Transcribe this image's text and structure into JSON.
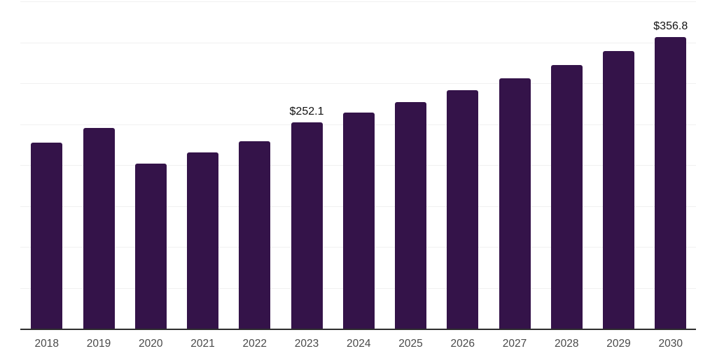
{
  "chart_data": {
    "type": "bar",
    "title": "",
    "xlabel": "",
    "ylabel": "",
    "categories": [
      "2018",
      "2019",
      "2020",
      "2021",
      "2022",
      "2023",
      "2024",
      "2025",
      "2026",
      "2027",
      "2028",
      "2029",
      "2030"
    ],
    "values": [
      227.0,
      245.0,
      202.0,
      215.7,
      229.4,
      252.1,
      264.2,
      277.0,
      291.4,
      306.2,
      322.2,
      339.6,
      356.8
    ],
    "labeled_points": [
      {
        "category": "2023",
        "label": "$252.1"
      },
      {
        "category": "2030",
        "label": "$356.8"
      }
    ],
    "ylim": [
      0,
      400
    ],
    "grid_step": 50,
    "grid": true,
    "legend": false,
    "y_axis_ticks_visible": false,
    "bar_color": "#341349",
    "axis_color": "#2e2e2e",
    "gridline_color": "#f0f0f0",
    "label_color": "#111111",
    "tick_color": "#4a4a4a",
    "background_color": "#ffffff"
  }
}
